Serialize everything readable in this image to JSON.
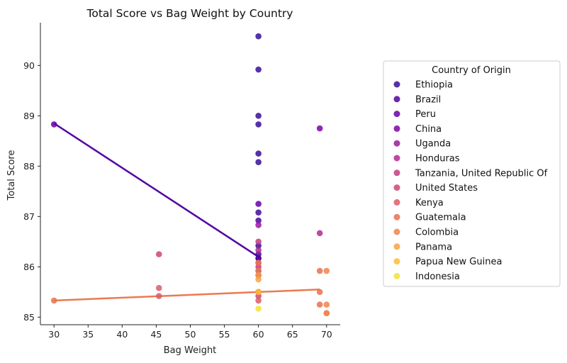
{
  "chart_data": {
    "type": "scatter",
    "title": "Total Score vs Bag Weight by Country",
    "xlabel": "Bag Weight",
    "ylabel": "Total Score",
    "xlim": [
      28,
      72
    ],
    "ylim": [
      84.85,
      90.85
    ],
    "x_ticks": [
      30,
      35,
      40,
      45,
      50,
      55,
      60,
      65,
      70
    ],
    "y_ticks": [
      85,
      86,
      87,
      88,
      89,
      90
    ],
    "grid": false,
    "legend": {
      "title": "Country of Origin",
      "placement": "right"
    },
    "series": [
      {
        "name": "Ethiopia",
        "color": "#3a0d9a",
        "points": [
          [
            60,
            90.58
          ],
          [
            60,
            89.92
          ],
          [
            60,
            89.0
          ],
          [
            60,
            88.83
          ],
          [
            60,
            88.25
          ],
          [
            60,
            88.08
          ],
          [
            60,
            87.08
          ],
          [
            60,
            86.42
          ],
          [
            60,
            86.25
          ],
          [
            60,
            86.17
          ],
          [
            60,
            85.92
          ]
        ]
      },
      {
        "name": "Brazil",
        "color": "#4e03a0",
        "points": [
          [
            60,
            86.92
          ],
          [
            60,
            86.17
          ],
          [
            60,
            85.5
          ]
        ]
      },
      {
        "name": "Peru",
        "color": "#6600a7",
        "points": [
          [
            30,
            88.83
          ],
          [
            60,
            87.25
          ]
        ]
      },
      {
        "name": "China",
        "color": "#7d03a8",
        "points": [
          [
            69,
            88.75
          ],
          [
            60,
            85.83
          ]
        ]
      },
      {
        "name": "Uganda",
        "color": "#9c179e",
        "points": [
          [
            60,
            86.83
          ]
        ]
      },
      {
        "name": "Honduras",
        "color": "#b02a90",
        "points": [
          [
            69,
            86.67
          ],
          [
            60,
            86.33
          ]
        ]
      },
      {
        "name": "Tanzania, United Republic Of",
        "color": "#c23c81",
        "points": [
          [
            60,
            86.5
          ],
          [
            60,
            86.0
          ]
        ]
      },
      {
        "name": "United States",
        "color": "#cc4778",
        "points": [
          [
            45.4,
            86.25
          ],
          [
            60,
            85.42
          ]
        ]
      },
      {
        "name": "Kenya",
        "color": "#db5c68",
        "points": [
          [
            45.4,
            85.58
          ],
          [
            45.4,
            85.42
          ],
          [
            60,
            85.33
          ],
          [
            60,
            86.08
          ]
        ]
      },
      {
        "name": "Guatemala",
        "color": "#e8714f",
        "points": [
          [
            30,
            85.33
          ],
          [
            69,
            85.92
          ],
          [
            69,
            85.5
          ],
          [
            69,
            85.25
          ],
          [
            60,
            86.08
          ]
        ]
      },
      {
        "name": "Colombia",
        "color": "#f1844b",
        "points": [
          [
            70,
            85.92
          ],
          [
            70,
            85.25
          ],
          [
            70,
            85.08
          ],
          [
            70,
            85.08
          ],
          [
            60,
            85.5
          ],
          [
            60,
            85.92
          ]
        ]
      },
      {
        "name": "Panama",
        "color": "#f9a242",
        "points": [
          [
            60,
            85.83
          ],
          [
            60,
            85.75
          ]
        ]
      },
      {
        "name": "Papua New Guinea",
        "color": "#fcc030",
        "points": [
          [
            60,
            85.5
          ]
        ]
      },
      {
        "name": "Indonesia",
        "color": "#f6e13a",
        "points": [
          [
            60,
            85.17
          ]
        ]
      }
    ],
    "trend_lines": [
      {
        "color": "#5204a2",
        "points": [
          [
            30,
            88.85
          ],
          [
            60,
            86.2
          ]
        ]
      },
      {
        "color": "#eb7a50",
        "points": [
          [
            30,
            85.33
          ],
          [
            69,
            85.55
          ]
        ]
      }
    ]
  }
}
